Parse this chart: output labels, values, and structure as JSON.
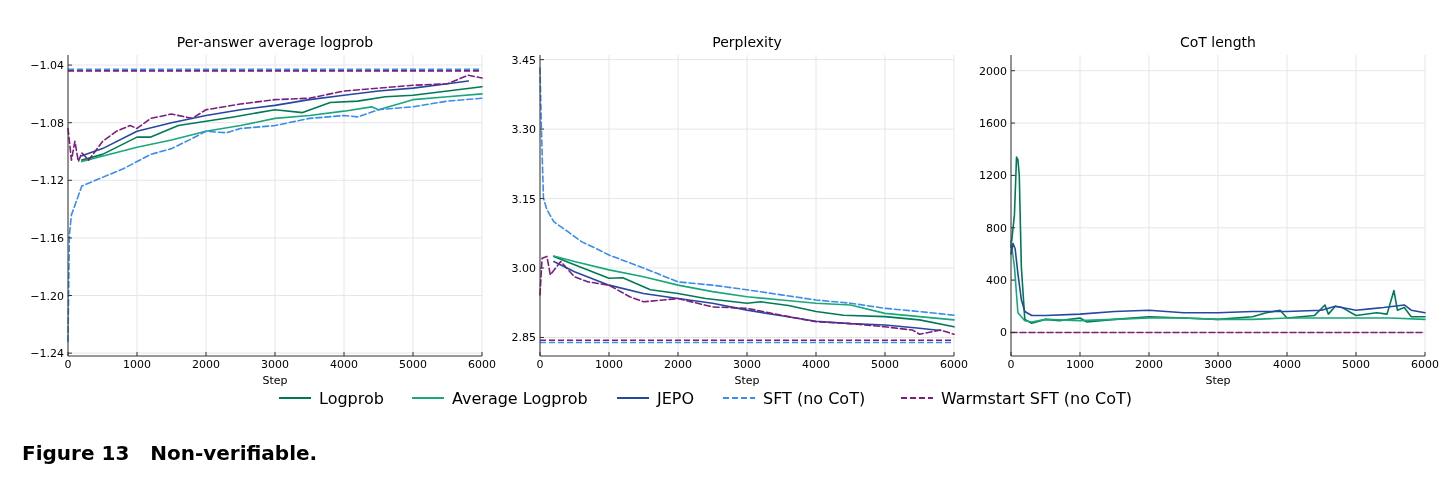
{
  "chart_data": [
    {
      "type": "line",
      "title": "Per-answer average logprob",
      "xlabel": "Step",
      "xlim": [
        0,
        6000
      ],
      "xticks": [
        0,
        1000,
        2000,
        3000,
        4000,
        5000,
        6000
      ],
      "ylim": [
        -1.242,
        -1.033
      ],
      "yticks": [
        {
          "value": -1.24,
          "label": "−1.24"
        },
        {
          "value": -1.2,
          "label": "−1.20"
        },
        {
          "value": -1.16,
          "label": "−1.16"
        },
        {
          "value": -1.12,
          "label": "−1.12"
        },
        {
          "value": -1.08,
          "label": "−1.08"
        },
        {
          "value": -1.04,
          "label": "−1.04"
        }
      ],
      "grid": true,
      "legend": "bottom",
      "annotations": [
        "Figure 13   Non-verifiable."
      ],
      "ref_lines": [
        {
          "axis": "y",
          "value": -1.043,
          "color": "#3a8cf0",
          "line_style": "dashed"
        },
        {
          "axis": "y",
          "value": -1.044,
          "color": "#7b1e7e",
          "line_style": "dashed"
        }
      ],
      "series": [
        {
          "name": "Logprob",
          "color": "#007a55",
          "line_style": "solid",
          "x": [
            200,
            500,
            1000,
            1200,
            1600,
            2000,
            2400,
            3000,
            3400,
            3800,
            4200,
            4600,
            5000,
            5500,
            6000
          ],
          "values": [
            -1.106,
            -1.102,
            -1.09,
            -1.09,
            -1.082,
            -1.079,
            -1.076,
            -1.071,
            -1.073,
            -1.066,
            -1.065,
            -1.062,
            -1.061,
            -1.058,
            -1.055
          ]
        },
        {
          "name": "Average Logprob",
          "color": "#1aa77a",
          "line_style": "solid",
          "x": [
            200,
            1000,
            1500,
            2000,
            2500,
            3000,
            3500,
            4000,
            4400,
            4500,
            5000,
            5500,
            6000
          ],
          "values": [
            -1.107,
            -1.097,
            -1.092,
            -1.086,
            -1.082,
            -1.077,
            -1.075,
            -1.072,
            -1.069,
            -1.071,
            -1.064,
            -1.062,
            -1.06
          ]
        },
        {
          "name": "JEPO",
          "color": "#2548a0",
          "line_style": "solid",
          "x": [
            200,
            500,
            1000,
            1500,
            2000,
            2500,
            3000,
            3500,
            4000,
            4500,
            5000,
            5500,
            5800
          ],
          "values": [
            -1.103,
            -1.098,
            -1.086,
            -1.08,
            -1.075,
            -1.071,
            -1.068,
            -1.064,
            -1.061,
            -1.058,
            -1.056,
            -1.053,
            -1.051
          ]
        },
        {
          "name": "SFT (no CoT)",
          "color": "#3a8cf0",
          "line_style": "dashed",
          "x": [
            0,
            20,
            50,
            200,
            500,
            800,
            1000,
            1200,
            1500,
            1800,
            2000,
            2300,
            2500,
            3000,
            3500,
            4000,
            4200,
            4500,
            5000,
            5500,
            6000
          ],
          "values": [
            -1.232,
            -1.158,
            -1.144,
            -1.124,
            -1.118,
            -1.112,
            -1.107,
            -1.102,
            -1.098,
            -1.091,
            -1.086,
            -1.087,
            -1.084,
            -1.082,
            -1.077,
            -1.075,
            -1.076,
            -1.071,
            -1.069,
            -1.065,
            -1.063
          ]
        },
        {
          "name": "Warmstart SFT (no CoT)",
          "color": "#7b1e7e",
          "line_style": "dashed",
          "x": [
            0,
            50,
            100,
            150,
            200,
            300,
            500,
            700,
            900,
            1000,
            1200,
            1500,
            1800,
            2000,
            2500,
            3000,
            3500,
            4000,
            4500,
            5000,
            5500,
            5800,
            6000
          ],
          "values": [
            -1.084,
            -1.106,
            -1.093,
            -1.107,
            -1.101,
            -1.106,
            -1.093,
            -1.086,
            -1.082,
            -1.084,
            -1.077,
            -1.074,
            -1.077,
            -1.071,
            -1.067,
            -1.064,
            -1.063,
            -1.058,
            -1.056,
            -1.054,
            -1.053,
            -1.047,
            -1.049
          ]
        }
      ]
    },
    {
      "type": "line",
      "title": "Perplexity",
      "xlabel": "Step",
      "xlim": [
        0,
        6000
      ],
      "xticks": [
        0,
        1000,
        2000,
        3000,
        4000,
        5000,
        6000
      ],
      "ylim": [
        2.81,
        3.46
      ],
      "yticks": [
        {
          "value": 2.85,
          "label": "2.85"
        },
        {
          "value": 3,
          "label": "3.00"
        },
        {
          "value": 3.15,
          "label": "3.15"
        },
        {
          "value": 3.3,
          "label": "3.30"
        },
        {
          "value": 3.45,
          "label": "3.45"
        }
      ],
      "grid": true,
      "legend": "bottom",
      "ref_lines": [
        {
          "axis": "y",
          "value": 2.844,
          "color": "#7b1e7e",
          "line_style": "dashed"
        },
        {
          "axis": "y",
          "value": 2.839,
          "color": "#3a8cf0",
          "line_style": "dashed"
        }
      ],
      "series": [
        {
          "name": "Logprob",
          "color": "#007a55",
          "line_style": "solid",
          "x": [
            200,
            500,
            1000,
            1200,
            1600,
            2000,
            2400,
            3000,
            3200,
            3600,
            4000,
            4400,
            5000,
            5500,
            6000
          ],
          "values": [
            3.025,
            3.007,
            2.978,
            2.979,
            2.953,
            2.945,
            2.934,
            2.924,
            2.927,
            2.919,
            2.906,
            2.898,
            2.895,
            2.888,
            2.873
          ]
        },
        {
          "name": "Average Logprob",
          "color": "#1aa77a",
          "line_style": "solid",
          "x": [
            200,
            500,
            1000,
            1500,
            2000,
            2500,
            3000,
            3500,
            4000,
            4500,
            5000,
            5500,
            6000
          ],
          "values": [
            3.026,
            3.014,
            2.996,
            2.981,
            2.963,
            2.949,
            2.938,
            2.931,
            2.924,
            2.92,
            2.902,
            2.895,
            2.888
          ]
        },
        {
          "name": "JEPO",
          "color": "#2548a0",
          "line_style": "solid",
          "x": [
            200,
            500,
            1000,
            1500,
            2000,
            2500,
            3000,
            3500,
            4000,
            4500,
            5000,
            5500,
            5800
          ],
          "values": [
            3.014,
            2.992,
            2.963,
            2.945,
            2.934,
            2.924,
            2.909,
            2.897,
            2.885,
            2.88,
            2.877,
            2.87,
            2.865
          ]
        },
        {
          "name": "SFT (no CoT)",
          "color": "#3a8cf0",
          "line_style": "dashed",
          "x": [
            0,
            20,
            50,
            100,
            200,
            400,
            600,
            800,
            1000,
            1500,
            2000,
            2500,
            3000,
            3500,
            4000,
            4500,
            5000,
            5500,
            6000
          ],
          "values": [
            3.432,
            3.302,
            3.151,
            3.126,
            3.1,
            3.079,
            3.057,
            3.043,
            3.028,
            3.0,
            2.97,
            2.963,
            2.953,
            2.942,
            2.931,
            2.924,
            2.913,
            2.906,
            2.898
          ]
        },
        {
          "name": "Warmstart SFT (no CoT)",
          "color": "#7b1e7e",
          "line_style": "dashed",
          "x": [
            0,
            30,
            100,
            150,
            300,
            500,
            700,
            1000,
            1300,
            1500,
            2000,
            2500,
            3000,
            3500,
            4000,
            4500,
            5000,
            5400,
            5500,
            5800,
            6000
          ],
          "values": [
            2.942,
            3.021,
            3.025,
            2.985,
            3.014,
            2.981,
            2.97,
            2.963,
            2.938,
            2.927,
            2.934,
            2.916,
            2.913,
            2.898,
            2.884,
            2.88,
            2.873,
            2.866,
            2.857,
            2.866,
            2.857
          ]
        }
      ]
    },
    {
      "type": "line",
      "title": "CoT length",
      "xlabel": "Step",
      "xlim": [
        0,
        6000
      ],
      "xticks": [
        0,
        1000,
        2000,
        3000,
        4000,
        5000,
        6000
      ],
      "ylim": [
        -180,
        2120
      ],
      "yticks": [
        0,
        400,
        800,
        1200,
        1600,
        2000
      ],
      "grid": true,
      "legend": "bottom",
      "series": [
        {
          "name": "Logprob",
          "color": "#007a55",
          "line_style": "solid",
          "x": [
            0,
            50,
            80,
            100,
            120,
            150,
            200,
            300,
            500,
            700,
            1000,
            1100,
            1500,
            2000,
            2500,
            3000,
            3500,
            3700,
            3900,
            4000,
            4400,
            4550,
            4600,
            4700,
            4800,
            5000,
            5300,
            5450,
            5550,
            5600,
            5700,
            5800,
            6000
          ],
          "values": [
            650,
            900,
            1340,
            1320,
            1200,
            500,
            100,
            70,
            100,
            90,
            110,
            80,
            100,
            120,
            110,
            100,
            120,
            150,
            170,
            110,
            130,
            210,
            140,
            200,
            190,
            130,
            150,
            140,
            320,
            170,
            190,
            120,
            120
          ]
        },
        {
          "name": "Average Logprob",
          "color": "#1aa77a",
          "line_style": "solid",
          "x": [
            0,
            50,
            100,
            200,
            300,
            500,
            1000,
            1500,
            2000,
            2500,
            3000,
            3500,
            4000,
            4500,
            5000,
            5500,
            6000
          ],
          "values": [
            700,
            500,
            150,
            90,
            80,
            100,
            90,
            100,
            110,
            110,
            100,
            100,
            110,
            110,
            110,
            110,
            100
          ]
        },
        {
          "name": "JEPO",
          "color": "#2548a0",
          "line_style": "solid",
          "x": [
            0,
            30,
            60,
            100,
            150,
            200,
            300,
            500,
            1000,
            1500,
            2000,
            2500,
            3000,
            3500,
            4000,
            4500,
            4700,
            5000,
            5200,
            5400,
            5700,
            5800,
            6000
          ],
          "values": [
            600,
            680,
            640,
            450,
            250,
            160,
            130,
            130,
            140,
            160,
            170,
            150,
            150,
            160,
            160,
            170,
            200,
            170,
            180,
            190,
            210,
            170,
            150
          ]
        },
        {
          "name": "Warmstart SFT (no CoT)",
          "color": "#7b1e7e",
          "line_style": "dashed",
          "x": [
            0,
            6000
          ],
          "values": [
            0,
            0
          ]
        }
      ]
    }
  ]
}
